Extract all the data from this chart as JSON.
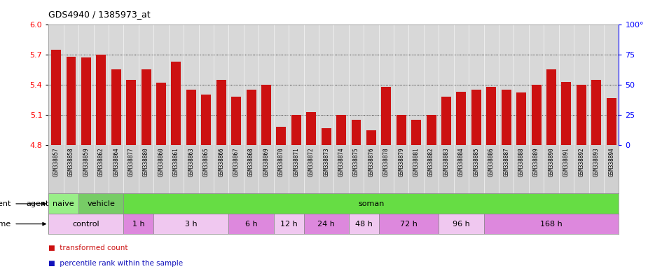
{
  "title": "GDS4940 / 1385973_at",
  "samples": [
    "GSM338857",
    "GSM338858",
    "GSM338859",
    "GSM338862",
    "GSM338864",
    "GSM338877",
    "GSM338880",
    "GSM338860",
    "GSM338861",
    "GSM338863",
    "GSM338865",
    "GSM338866",
    "GSM338867",
    "GSM338868",
    "GSM338869",
    "GSM338870",
    "GSM338871",
    "GSM338872",
    "GSM338873",
    "GSM338874",
    "GSM338875",
    "GSM338876",
    "GSM338878",
    "GSM338879",
    "GSM338881",
    "GSM338882",
    "GSM338883",
    "GSM338884",
    "GSM338885",
    "GSM338886",
    "GSM338887",
    "GSM338888",
    "GSM338889",
    "GSM338890",
    "GSM338891",
    "GSM338892",
    "GSM338893",
    "GSM338894"
  ],
  "transformed_count": [
    5.75,
    5.68,
    5.67,
    5.7,
    5.55,
    5.45,
    5.55,
    5.42,
    5.63,
    5.35,
    5.3,
    5.45,
    5.28,
    5.35,
    5.4,
    4.98,
    5.1,
    5.13,
    4.97,
    5.1,
    5.05,
    4.95,
    5.38,
    5.1,
    5.05,
    5.1,
    5.28,
    5.33,
    5.35,
    5.38,
    5.35,
    5.32,
    5.4,
    5.55,
    5.43,
    5.4,
    5.45,
    5.27
  ],
  "percentile_rank": [
    8,
    5,
    8,
    5,
    6,
    5,
    5,
    8,
    5,
    5,
    5,
    6,
    5,
    5,
    5,
    5,
    5,
    5,
    5,
    5,
    5,
    5,
    5,
    5,
    5,
    5,
    5,
    5,
    5,
    5,
    5,
    5,
    5,
    5,
    8,
    5,
    5,
    5
  ],
  "y_min": 4.8,
  "y_max": 6.0,
  "y_ticks_left": [
    4.8,
    5.1,
    5.4,
    5.7,
    6.0
  ],
  "y_ticks_right": [
    0,
    25,
    50,
    75,
    100
  ],
  "bar_color_red": "#cc1111",
  "bar_color_blue": "#1111bb",
  "plot_bg": "#d8d8d8",
  "xtick_bg": "#d0d0d0",
  "agent_blocks": [
    {
      "label": "naive",
      "start": 0,
      "end": 2,
      "color": "#99ee88"
    },
    {
      "label": "vehicle",
      "start": 2,
      "end": 5,
      "color": "#77cc66"
    },
    {
      "label": "soman",
      "start": 5,
      "end": 38,
      "color": "#66dd44"
    }
  ],
  "time_blocks": [
    {
      "label": "control",
      "start": 0,
      "end": 5,
      "color": "#f0c8f0"
    },
    {
      "label": "1 h",
      "start": 5,
      "end": 7,
      "color": "#dd88dd"
    },
    {
      "label": "3 h",
      "start": 7,
      "end": 12,
      "color": "#f0c8f0"
    },
    {
      "label": "6 h",
      "start": 12,
      "end": 15,
      "color": "#dd88dd"
    },
    {
      "label": "12 h",
      "start": 15,
      "end": 17,
      "color": "#f0c8f0"
    },
    {
      "label": "24 h",
      "start": 17,
      "end": 20,
      "color": "#dd88dd"
    },
    {
      "label": "48 h",
      "start": 20,
      "end": 22,
      "color": "#f0c8f0"
    },
    {
      "label": "72 h",
      "start": 22,
      "end": 26,
      "color": "#dd88dd"
    },
    {
      "label": "96 h",
      "start": 26,
      "end": 29,
      "color": "#f0c8f0"
    },
    {
      "label": "168 h",
      "start": 29,
      "end": 38,
      "color": "#dd88dd"
    }
  ]
}
